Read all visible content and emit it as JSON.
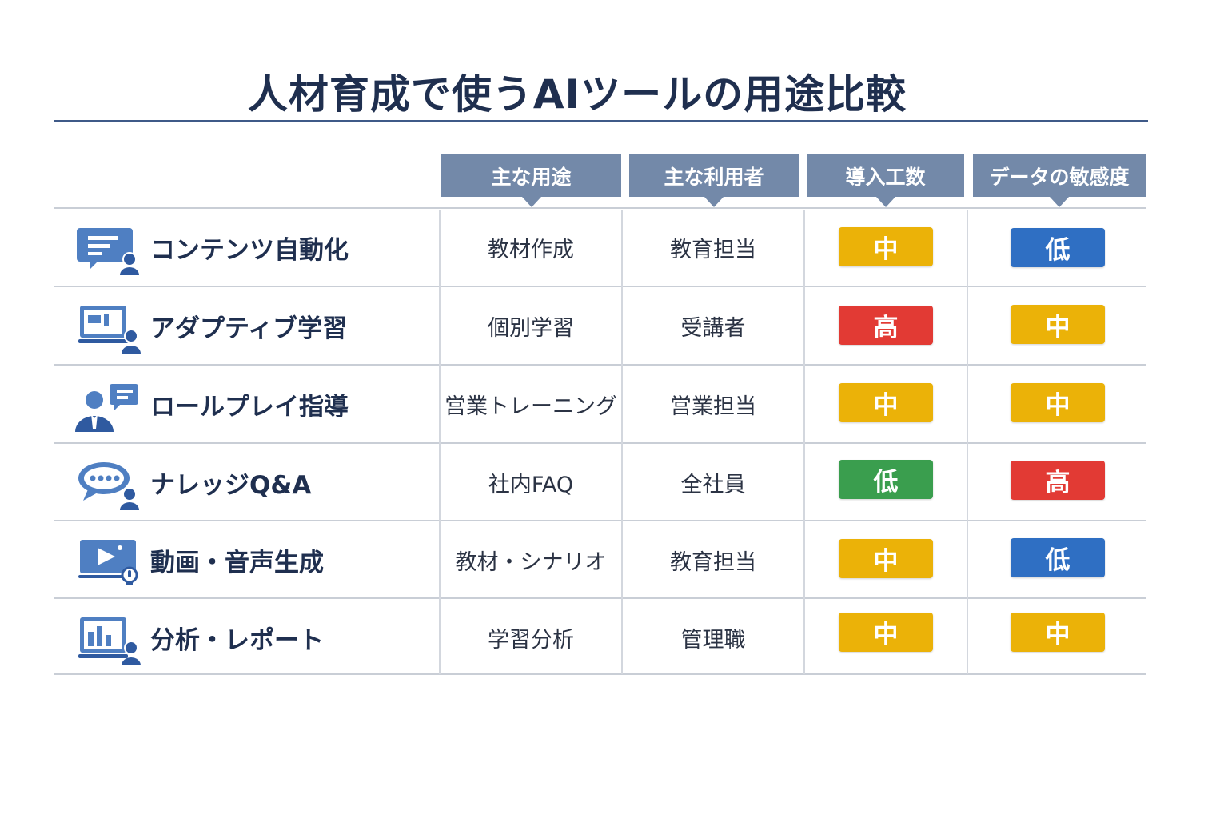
{
  "title": "人材育成で使うAIツールの用途比較",
  "columns": [
    "主な用途",
    "主な利用者",
    "導入工数",
    "データの敏感度"
  ],
  "colors": {
    "header_bg": "#7389a9",
    "level_mid": "#ebb208",
    "level_high": "#e23a34",
    "level_low_effort": "#3a9e4e",
    "level_low_sensitivity": "#2f6fc3",
    "icon": "#3d6db5"
  },
  "rows": [
    {
      "icon": "chat-person-icon",
      "name": "コンテンツ自動化",
      "use": "教材作成",
      "user": "教育担当",
      "effort": "中",
      "sensitivity": "低"
    },
    {
      "icon": "screen-person-icon",
      "name": "アダプティブ学習",
      "use": "個別学習",
      "user": "受講者",
      "effort": "高",
      "sensitivity": "中"
    },
    {
      "icon": "business-person-chat-icon",
      "name": "ロールプレイ指導",
      "use": "営業トレーニング",
      "user": "営業担当",
      "effort": "中",
      "sensitivity": "中"
    },
    {
      "icon": "speech-bubble-person-icon",
      "name": "ナレッジQ&A",
      "use": "社内FAQ",
      "user": "全社員",
      "effort": "低",
      "sensitivity": "高"
    },
    {
      "icon": "video-play-icon",
      "name": "動画・音声生成",
      "use": "教材・シナリオ",
      "user": "教育担当",
      "effort": "中",
      "sensitivity": "低"
    },
    {
      "icon": "bar-chart-person-icon",
      "name": "分析・レポート",
      "use": "学習分析",
      "user": "管理職",
      "effort": "中",
      "sensitivity": "中"
    }
  ]
}
